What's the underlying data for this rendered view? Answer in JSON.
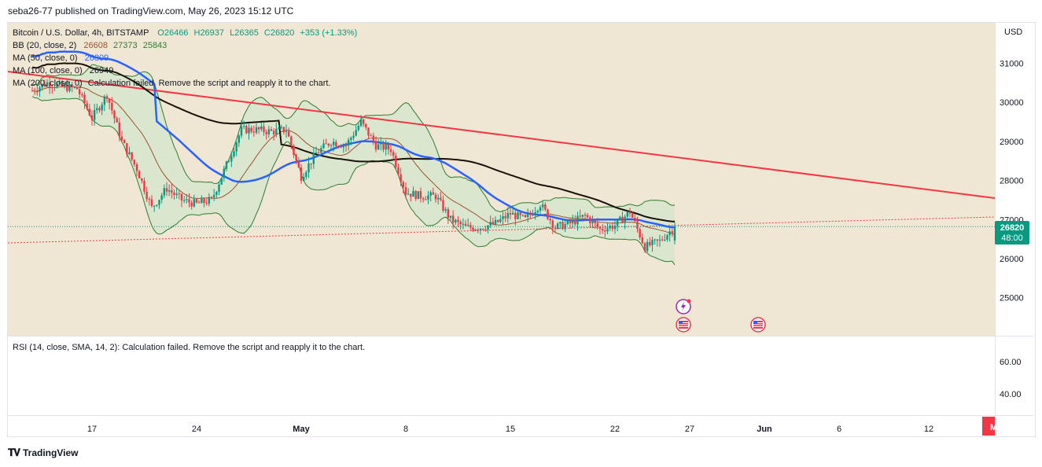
{
  "header": {
    "published": "seba26-77 published on TradingView.com, May 26, 2023 15:12 UTC"
  },
  "legend": {
    "symbol": "Bitcoin / U.S. Dollar, 4h, BITSTAMP",
    "open": "O26466",
    "high": "H26937",
    "low": "L26365",
    "close": "C26820",
    "change": "+353 (+1.33%)",
    "bb_label": "BB (20, close, 2)",
    "bb_basis": "26608",
    "bb_upper": "27373",
    "bb_lower": "25843",
    "ma50_label": "MA (50, close, 0)",
    "ma50_value": "26809",
    "ma100_label": "MA (100, close, 0)",
    "ma100_value": "26949",
    "ma200_label": "MA (200, close, 0)",
    "ma200_error": "Calculation failed. Remove the script and reapply it to the chart."
  },
  "rsi_legend": "RSI (14, close, SMA, 14, 2): Calculation failed. Remove the script and reapply it to the chart.",
  "price_axis": {
    "currency": "USD",
    "ticks": [
      "31000",
      "30000",
      "29000",
      "28000",
      "27000",
      "26000",
      "25000"
    ]
  },
  "price_tag": {
    "price": "26820",
    "countdown": "48:00"
  },
  "rsi_axis": {
    "ticks": [
      "60.00",
      "40.00"
    ]
  },
  "time_axis": {
    "ticks": [
      "17",
      "24",
      "May",
      "8",
      "15",
      "22",
      "27",
      "Jun",
      "6",
      "12"
    ],
    "marker": "M"
  },
  "footer": {
    "brand": "TradingView"
  },
  "colors": {
    "pane_bg": "#f0e6d4",
    "up": "#089981",
    "down": "#f23645",
    "ma50": "#2962ff",
    "ma100": "#1a1108",
    "bb_line": "#2e7d32",
    "bb_fill": "#c8e6c9",
    "bb_basis": "#a0522d",
    "trendline": "#f23645"
  },
  "chart_data": {
    "type": "candlestick",
    "title": "Bitcoin / U.S. Dollar, 4h, BITSTAMP",
    "ylabel": "USD",
    "ylim": [
      24000,
      31900
    ],
    "x_ticks": [
      "17",
      "24",
      "May",
      "8",
      "15",
      "22",
      "27",
      "Jun",
      "6",
      "12"
    ],
    "close_path": [
      {
        "date": "2023-04-13",
        "close": 30300
      },
      {
        "date": "2023-04-14",
        "close": 30500
      },
      {
        "date": "2023-04-15",
        "close": 30400
      },
      {
        "date": "2023-04-16",
        "close": 30350
      },
      {
        "date": "2023-04-17",
        "close": 29600
      },
      {
        "date": "2023-04-18",
        "close": 30200
      },
      {
        "date": "2023-04-19",
        "close": 29000
      },
      {
        "date": "2023-04-20",
        "close": 28300
      },
      {
        "date": "2023-04-21",
        "close": 27300
      },
      {
        "date": "2023-04-22",
        "close": 27800
      },
      {
        "date": "2023-04-23",
        "close": 27500
      },
      {
        "date": "2023-04-24",
        "close": 27400
      },
      {
        "date": "2023-04-25",
        "close": 27500
      },
      {
        "date": "2023-04-26",
        "close": 28400
      },
      {
        "date": "2023-04-27",
        "close": 29300
      },
      {
        "date": "2023-04-28",
        "close": 29300
      },
      {
        "date": "2023-04-29",
        "close": 29250
      },
      {
        "date": "2023-04-30",
        "close": 29300
      },
      {
        "date": "2023-05-01",
        "close": 28100
      },
      {
        "date": "2023-05-02",
        "close": 28700
      },
      {
        "date": "2023-05-03",
        "close": 29000
      },
      {
        "date": "2023-05-04",
        "close": 28900
      },
      {
        "date": "2023-05-05",
        "close": 29500
      },
      {
        "date": "2023-05-06",
        "close": 28900
      },
      {
        "date": "2023-05-07",
        "close": 28800
      },
      {
        "date": "2023-05-08",
        "close": 27700
      },
      {
        "date": "2023-05-09",
        "close": 27600
      },
      {
        "date": "2023-05-10",
        "close": 27600
      },
      {
        "date": "2023-05-11",
        "close": 27000
      },
      {
        "date": "2023-05-12",
        "close": 26800
      },
      {
        "date": "2023-05-13",
        "close": 26800
      },
      {
        "date": "2023-05-14",
        "close": 26900
      },
      {
        "date": "2023-05-15",
        "close": 27150
      },
      {
        "date": "2023-05-16",
        "close": 27000
      },
      {
        "date": "2023-05-17",
        "close": 27400
      },
      {
        "date": "2023-05-18",
        "close": 26800
      },
      {
        "date": "2023-05-19",
        "close": 26900
      },
      {
        "date": "2023-05-20",
        "close": 27100
      },
      {
        "date": "2023-05-21",
        "close": 26750
      },
      {
        "date": "2023-05-22",
        "close": 26850
      },
      {
        "date": "2023-05-23",
        "close": 27200
      },
      {
        "date": "2023-05-24",
        "close": 26300
      },
      {
        "date": "2023-05-25",
        "close": 26450
      },
      {
        "date": "2023-05-26",
        "close": 26820
      }
    ],
    "last": {
      "open": 26466,
      "high": 26937,
      "low": 26365,
      "close": 26820
    },
    "bollinger": {
      "basis": 26608,
      "upper": 27373,
      "lower": 25843
    },
    "ma50": 26809,
    "ma100": 26949,
    "annotations": [
      "descending trendline",
      "rising dotted trendline",
      "current price line 26820"
    ]
  }
}
